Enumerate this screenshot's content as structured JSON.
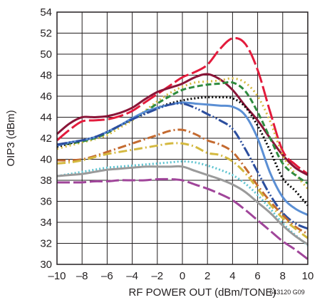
{
  "chart_data": {
    "type": "line",
    "title": "",
    "xlabel": "RF POWER OUT (dBm/TONE)",
    "ylabel": "OIP3 (dBm)",
    "figure_id": "643120 G09",
    "xlim": [
      -10,
      10
    ],
    "ylim": [
      30,
      54
    ],
    "x_ticks": [
      -10,
      -8,
      -6,
      -4,
      -2,
      0,
      2,
      4,
      6,
      8,
      10
    ],
    "x_tick_labels": [
      "–10",
      "–8",
      "–6",
      "–4",
      "–2",
      "0",
      "2",
      "4",
      "6",
      "8",
      "10"
    ],
    "y_ticks": [
      30,
      32,
      34,
      36,
      38,
      40,
      42,
      44,
      46,
      48,
      50,
      52,
      54
    ],
    "grid": true,
    "legend": "none",
    "series": [
      {
        "color": "#e31b3c",
        "dash": "22,5",
        "points": [
          [
            -10,
            41.8
          ],
          [
            -9,
            42.8
          ],
          [
            -8,
            43.6
          ],
          [
            -7,
            43.7
          ],
          [
            -6,
            43.8
          ],
          [
            -5,
            44.1
          ],
          [
            -4,
            44.6
          ],
          [
            -3,
            45.4
          ],
          [
            -2,
            46.2
          ],
          [
            -1,
            47.0
          ],
          [
            0,
            47.8
          ],
          [
            1,
            48.3
          ],
          [
            2,
            49.0
          ],
          [
            3,
            50.5
          ],
          [
            4,
            51.5
          ],
          [
            5,
            51.0
          ],
          [
            6,
            48.5
          ],
          [
            7,
            44.5
          ],
          [
            8,
            40.8
          ],
          [
            9,
            39.5
          ],
          [
            10,
            38.6
          ]
        ]
      },
      {
        "color": "#8a1538",
        "dash": "",
        "points": [
          [
            -10,
            42.4
          ],
          [
            -9,
            43.4
          ],
          [
            -8,
            44.0
          ],
          [
            -7,
            44.0
          ],
          [
            -6,
            44.1
          ],
          [
            -5,
            44.4
          ],
          [
            -4,
            44.9
          ],
          [
            -3,
            45.7
          ],
          [
            -2,
            46.4
          ],
          [
            -1,
            46.8
          ],
          [
            0,
            47.2
          ],
          [
            1,
            47.8
          ],
          [
            2,
            48.1
          ],
          [
            3,
            47.6
          ],
          [
            4,
            46.6
          ],
          [
            5,
            45.1
          ],
          [
            6,
            43.7
          ],
          [
            7,
            42.0
          ],
          [
            8,
            40.4
          ],
          [
            9,
            39.2
          ],
          [
            10,
            38.5
          ]
        ]
      },
      {
        "color": "#d4b940",
        "dash": "2,4",
        "points": [
          [
            -10,
            41.0
          ],
          [
            -9,
            41.3
          ],
          [
            -8,
            41.6
          ],
          [
            -7,
            41.9
          ],
          [
            -6,
            42.3
          ],
          [
            -5,
            43.0
          ],
          [
            -4,
            43.7
          ],
          [
            -3,
            44.6
          ],
          [
            -2,
            45.5
          ],
          [
            -1,
            46.3
          ],
          [
            0,
            46.9
          ],
          [
            1,
            47.3
          ],
          [
            2,
            47.4
          ],
          [
            3,
            47.5
          ],
          [
            4,
            47.7
          ],
          [
            5,
            47.3
          ],
          [
            6,
            46.0
          ],
          [
            7,
            43.6
          ],
          [
            8,
            40.4
          ],
          [
            9,
            38.6
          ],
          [
            10,
            37.2
          ]
        ]
      },
      {
        "color": "#2e8b3e",
        "dash": "8,4",
        "points": [
          [
            -10,
            41.4
          ],
          [
            -9,
            41.5
          ],
          [
            -8,
            41.7
          ],
          [
            -7,
            42.0
          ],
          [
            -6,
            42.5
          ],
          [
            -5,
            43.2
          ],
          [
            -4,
            43.8
          ],
          [
            -3,
            44.5
          ],
          [
            -2,
            45.3
          ],
          [
            -1,
            46.0
          ],
          [
            0,
            46.6
          ],
          [
            1,
            46.9
          ],
          [
            2,
            47.1
          ],
          [
            3,
            47.2
          ],
          [
            4,
            47.3
          ],
          [
            5,
            46.5
          ],
          [
            6,
            44.5
          ],
          [
            7,
            42.0
          ],
          [
            8,
            39.6
          ],
          [
            9,
            38.5
          ],
          [
            10,
            37.7
          ]
        ]
      },
      {
        "color": "#000000",
        "dash": "2,3",
        "points": [
          [
            -10,
            41.2
          ],
          [
            -9,
            41.5
          ],
          [
            -8,
            41.8
          ],
          [
            -7,
            42.1
          ],
          [
            -6,
            42.6
          ],
          [
            -5,
            43.2
          ],
          [
            -4,
            43.8
          ],
          [
            -3,
            44.4
          ],
          [
            -2,
            44.9
          ],
          [
            -1,
            45.3
          ],
          [
            0,
            45.6
          ],
          [
            1,
            45.8
          ],
          [
            2,
            45.9
          ],
          [
            3,
            45.9
          ],
          [
            4,
            45.8
          ],
          [
            5,
            45.0
          ],
          [
            6,
            43.2
          ],
          [
            7,
            40.8
          ],
          [
            8,
            38.2
          ],
          [
            9,
            37.0
          ],
          [
            10,
            35.6
          ]
        ]
      },
      {
        "color": "#5b8fd4",
        "dash": "",
        "points": [
          [
            -10,
            41.3
          ],
          [
            -9,
            41.6
          ],
          [
            -8,
            41.8
          ],
          [
            -7,
            42.1
          ],
          [
            -6,
            42.6
          ],
          [
            -5,
            43.2
          ],
          [
            -4,
            43.9
          ],
          [
            -3,
            44.5
          ],
          [
            -2,
            44.9
          ],
          [
            -1,
            45.2
          ],
          [
            0,
            45.4
          ],
          [
            1,
            45.3
          ],
          [
            2,
            45.2
          ],
          [
            3,
            45.1
          ],
          [
            4,
            45.0
          ],
          [
            5,
            44.2
          ],
          [
            6,
            42.0
          ],
          [
            7,
            38.7
          ],
          [
            8,
            36.4
          ],
          [
            9,
            35.3
          ],
          [
            10,
            34.7
          ]
        ]
      },
      {
        "color": "#2c4e9e",
        "dash": "14,3,2,3,2,3",
        "points": [
          [
            -10,
            41.4
          ],
          [
            -9,
            41.6
          ],
          [
            -8,
            41.8
          ],
          [
            -7,
            42.1
          ],
          [
            -6,
            42.6
          ],
          [
            -5,
            43.2
          ],
          [
            -4,
            43.8
          ],
          [
            -3,
            44.3
          ],
          [
            -2,
            44.8
          ],
          [
            -1,
            45.2
          ],
          [
            0,
            45.3
          ],
          [
            1,
            44.9
          ],
          [
            2,
            44.3
          ],
          [
            3,
            43.7
          ],
          [
            4,
            42.9
          ],
          [
            5,
            41.0
          ],
          [
            6,
            38.8
          ],
          [
            7,
            36.6
          ],
          [
            8,
            34.9
          ],
          [
            9,
            33.9
          ],
          [
            10,
            33.4
          ]
        ]
      },
      {
        "color": "#c46a30",
        "dash": "12,4,2,4",
        "points": [
          [
            -10,
            39.9
          ],
          [
            -9,
            39.9
          ],
          [
            -8,
            40.0
          ],
          [
            -7,
            40.3
          ],
          [
            -6,
            40.7
          ],
          [
            -5,
            41.1
          ],
          [
            -4,
            41.5
          ],
          [
            -3,
            41.9
          ],
          [
            -2,
            42.3
          ],
          [
            -1,
            42.7
          ],
          [
            0,
            42.8
          ],
          [
            1,
            42.4
          ],
          [
            2,
            41.8
          ],
          [
            3,
            41.4
          ],
          [
            4,
            40.7
          ],
          [
            5,
            39.2
          ],
          [
            6,
            37.5
          ],
          [
            7,
            36.0
          ],
          [
            8,
            34.7
          ],
          [
            9,
            33.6
          ],
          [
            10,
            32.9
          ]
        ]
      },
      {
        "color": "#d4b940",
        "dash": "12,4,2,4",
        "points": [
          [
            -10,
            39.6
          ],
          [
            -9,
            39.7
          ],
          [
            -8,
            39.9
          ],
          [
            -7,
            40.2
          ],
          [
            -6,
            40.5
          ],
          [
            -5,
            40.7
          ],
          [
            -4,
            40.9
          ],
          [
            -3,
            41.1
          ],
          [
            -2,
            41.3
          ],
          [
            -1,
            41.5
          ],
          [
            0,
            41.5
          ],
          [
            1,
            41.2
          ],
          [
            2,
            40.6
          ],
          [
            3,
            40.4
          ],
          [
            4,
            39.8
          ],
          [
            5,
            38.7
          ],
          [
            6,
            37.2
          ],
          [
            7,
            35.7
          ],
          [
            8,
            34.4
          ],
          [
            9,
            33.4
          ],
          [
            10,
            32.5
          ]
        ]
      },
      {
        "color": "#5ec3d0",
        "dash": "2,3",
        "points": [
          [
            -10,
            38.4
          ],
          [
            -9,
            38.6
          ],
          [
            -8,
            38.8
          ],
          [
            -7,
            39.0
          ],
          [
            -6,
            39.2
          ],
          [
            -5,
            39.3
          ],
          [
            -4,
            39.4
          ],
          [
            -3,
            39.5
          ],
          [
            -2,
            39.6
          ],
          [
            -1,
            39.7
          ],
          [
            0,
            39.8
          ],
          [
            1,
            39.7
          ],
          [
            2,
            39.4
          ],
          [
            3,
            39.0
          ],
          [
            4,
            38.5
          ],
          [
            5,
            37.7
          ],
          [
            6,
            36.6
          ],
          [
            7,
            35.3
          ],
          [
            8,
            33.9
          ],
          [
            9,
            32.8
          ],
          [
            10,
            31.8
          ]
        ]
      },
      {
        "color": "#9a9a9a",
        "dash": "",
        "points": [
          [
            -10,
            38.4
          ],
          [
            -9,
            38.5
          ],
          [
            -8,
            38.6
          ],
          [
            -7,
            38.8
          ],
          [
            -6,
            39.0
          ],
          [
            -5,
            39.1
          ],
          [
            -4,
            39.2
          ],
          [
            -3,
            39.3
          ],
          [
            -2,
            39.3
          ],
          [
            -1,
            39.3
          ],
          [
            0,
            39.3
          ],
          [
            1,
            38.9
          ],
          [
            2,
            38.5
          ],
          [
            3,
            38.1
          ],
          [
            4,
            37.6
          ],
          [
            5,
            36.9
          ],
          [
            6,
            35.9
          ],
          [
            7,
            34.9
          ],
          [
            8,
            33.7
          ],
          [
            9,
            32.7
          ],
          [
            10,
            31.9
          ]
        ]
      },
      {
        "color": "#a0459a",
        "dash": "18,5",
        "points": [
          [
            -10,
            37.8
          ],
          [
            -9,
            37.8
          ],
          [
            -8,
            37.8
          ],
          [
            -7,
            37.9
          ],
          [
            -6,
            37.9
          ],
          [
            -5,
            38.0
          ],
          [
            -4,
            38.0
          ],
          [
            -3,
            38.0
          ],
          [
            -2,
            38.1
          ],
          [
            -1,
            38.1
          ],
          [
            0,
            38.0
          ],
          [
            1,
            37.6
          ],
          [
            2,
            37.2
          ],
          [
            3,
            36.7
          ],
          [
            4,
            36.1
          ],
          [
            5,
            35.2
          ],
          [
            6,
            34.2
          ],
          [
            7,
            33.2
          ],
          [
            8,
            32.2
          ],
          [
            9,
            31.4
          ],
          [
            10,
            30.5
          ]
        ]
      }
    ]
  }
}
